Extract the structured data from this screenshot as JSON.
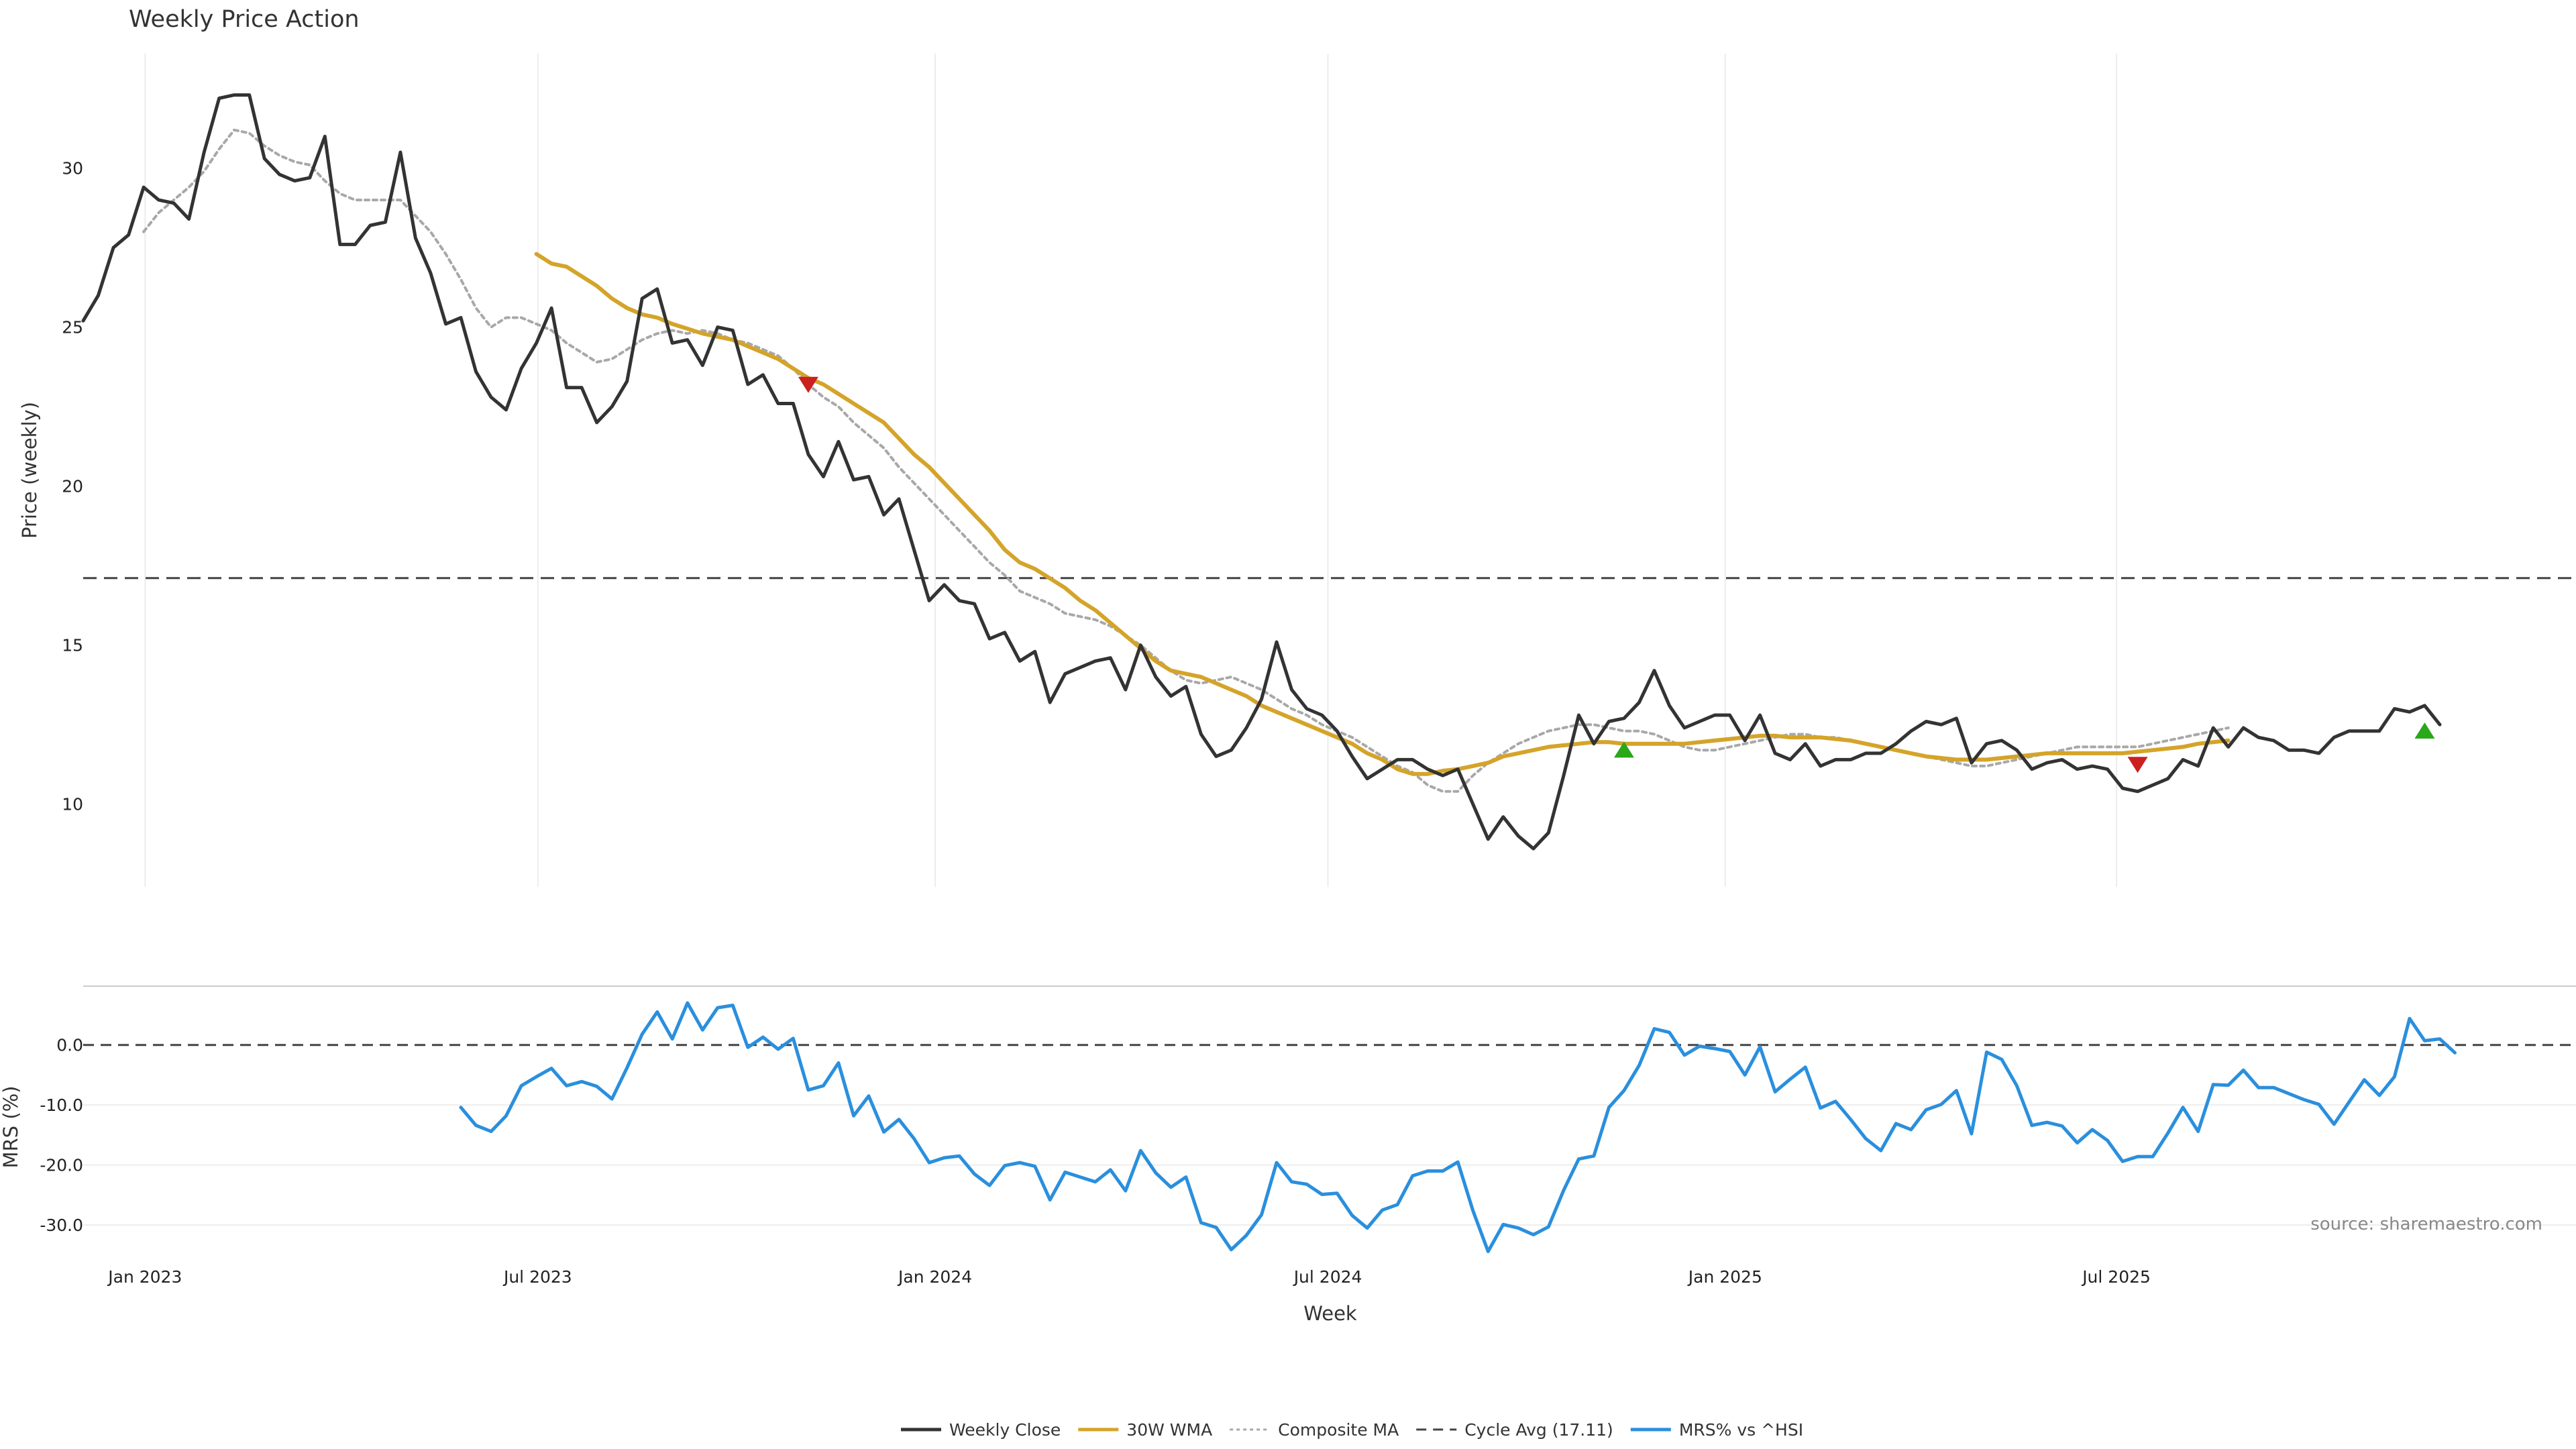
{
  "chart_data": [
    {
      "type": "line",
      "title": "Weekly Price Action",
      "xlabel": "",
      "ylabel": "Price (weekly)",
      "ylim": [
        7.4,
        33.6
      ],
      "yticks": [
        10,
        15,
        20,
        25,
        30
      ],
      "grid": "vertical",
      "x_start": "2022-12-05",
      "x_step": "weekly",
      "series": [
        {
          "name": "Weekly Close",
          "color": "#333333",
          "start_index": 0,
          "values": [
            25.2,
            26.0,
            27.5,
            27.9,
            29.4,
            29.0,
            28.9,
            28.4,
            30.5,
            32.2,
            32.3,
            32.3,
            30.3,
            29.8,
            29.6,
            29.7,
            31.0,
            27.6,
            27.6,
            28.2,
            28.3,
            30.5,
            27.8,
            26.7,
            25.1,
            25.3,
            23.6,
            22.8,
            22.4,
            23.7,
            24.5,
            25.6,
            23.1,
            23.1,
            22.0,
            22.5,
            23.3,
            25.9,
            26.2,
            24.5,
            24.6,
            23.8,
            25.0,
            24.9,
            23.2,
            23.5,
            22.6,
            22.6,
            21.0,
            20.3,
            21.4,
            20.2,
            20.3,
            19.1,
            19.6,
            18.0,
            16.4,
            16.9,
            16.4,
            16.3,
            15.2,
            15.4,
            14.5,
            14.8,
            13.2,
            14.1,
            14.3,
            14.5,
            14.6,
            13.6,
            15.0,
            14.0,
            13.4,
            13.7,
            12.2,
            11.5,
            11.7,
            12.4,
            13.3,
            15.1,
            13.6,
            13.0,
            12.8,
            12.3,
            11.5,
            10.8,
            11.1,
            11.4,
            11.4,
            11.1,
            10.9,
            11.1,
            10.0,
            8.9,
            9.6,
            9.0,
            8.6,
            9.1,
            10.9,
            12.8,
            11.9,
            12.6,
            12.7,
            13.2,
            14.2,
            13.1,
            12.4,
            12.6,
            12.8,
            12.8,
            12.0,
            12.8,
            11.6,
            11.4,
            11.9,
            11.2,
            11.4,
            11.4,
            11.6,
            11.6,
            11.9,
            12.3,
            12.6,
            12.5,
            12.7,
            11.3,
            11.9,
            12.0,
            11.7,
            11.1,
            11.3,
            11.4,
            11.1,
            11.2,
            11.1,
            10.5,
            10.4,
            10.6,
            10.8,
            11.4,
            11.2,
            12.4,
            11.8,
            12.4,
            12.1,
            12.0,
            11.7,
            11.7,
            11.6,
            12.1,
            12.3,
            12.3,
            12.3,
            13.0,
            12.9,
            13.1,
            12.5
          ]
        },
        {
          "name": "30W WMA",
          "color": "#d4a42a",
          "start_index": 30,
          "values": [
            27.3,
            27.0,
            26.9,
            26.6,
            26.3,
            25.9,
            25.6,
            25.4,
            25.3,
            25.1,
            24.95,
            24.8,
            24.7,
            24.6,
            24.4,
            24.2,
            24.0,
            23.7,
            23.4,
            23.2,
            22.9,
            22.6,
            22.3,
            22.0,
            21.5,
            21.0,
            20.6,
            20.1,
            19.6,
            19.1,
            18.6,
            18.0,
            17.6,
            17.4,
            17.1,
            16.8,
            16.4,
            16.1,
            15.7,
            15.3,
            14.9,
            14.5,
            14.2,
            14.1,
            14.0,
            13.8,
            13.6,
            13.4,
            13.1,
            12.9,
            12.7,
            12.5,
            12.3,
            12.1,
            11.9,
            11.6,
            11.4,
            11.1,
            10.95,
            10.95,
            11.05,
            11.1,
            11.2,
            11.3,
            11.5,
            11.6,
            11.7,
            11.8,
            11.85,
            11.9,
            11.95,
            11.95,
            11.9,
            11.9,
            11.9,
            11.9,
            11.9,
            11.95,
            12.0,
            12.05,
            12.1,
            12.15,
            12.15,
            12.1,
            12.1,
            12.1,
            12.05,
            12.0,
            11.9,
            11.8,
            11.7,
            11.6,
            11.5,
            11.45,
            11.4,
            11.4,
            11.4,
            11.45,
            11.5,
            11.55,
            11.6,
            11.6,
            11.6,
            11.6,
            11.6,
            11.6,
            11.65,
            11.7,
            11.75,
            11.8,
            11.9,
            11.95,
            12.0
          ]
        },
        {
          "name": "Composite MA",
          "color": "#a8a8a8",
          "start_index": 4,
          "values": [
            28.0,
            28.6,
            29.0,
            29.4,
            29.9,
            30.6,
            31.2,
            31.1,
            30.7,
            30.4,
            30.2,
            30.1,
            29.6,
            29.2,
            29.0,
            29.0,
            29.0,
            29.0,
            28.5,
            28.0,
            27.3,
            26.5,
            25.6,
            25.0,
            25.3,
            25.3,
            25.1,
            24.9,
            24.5,
            24.2,
            23.9,
            24.0,
            24.3,
            24.6,
            24.8,
            24.9,
            24.8,
            24.9,
            24.8,
            24.6,
            24.5,
            24.3,
            24.1,
            23.7,
            23.2,
            22.8,
            22.5,
            22.0,
            21.6,
            21.2,
            20.6,
            20.1,
            19.6,
            19.1,
            18.6,
            18.1,
            17.6,
            17.2,
            16.7,
            16.5,
            16.3,
            16.0,
            15.9,
            15.8,
            15.6,
            15.3,
            15.0,
            14.6,
            14.2,
            13.9,
            13.8,
            13.9,
            14.0,
            13.8,
            13.6,
            13.3,
            13.0,
            12.8,
            12.5,
            12.3,
            12.1,
            11.8,
            11.5,
            11.2,
            11.0,
            10.6,
            10.4,
            10.4,
            10.9,
            11.3,
            11.6,
            11.9,
            12.1,
            12.3,
            12.4,
            12.5,
            12.5,
            12.4,
            12.3,
            12.3,
            12.2,
            12.0,
            11.8,
            11.7,
            11.7,
            11.8,
            11.9,
            12.0,
            12.1,
            12.2,
            12.2,
            12.1,
            12.1,
            12.0,
            11.9,
            11.8,
            11.7,
            11.6,
            11.5,
            11.4,
            11.3,
            11.2,
            11.2,
            11.3,
            11.4,
            11.5,
            11.6,
            11.7,
            11.8,
            11.8,
            11.8,
            11.8,
            11.8,
            11.9,
            12.0,
            12.1,
            12.2,
            12.3,
            12.4
          ]
        }
      ],
      "reference_lines": [
        {
          "name": "Cycle Avg (17.11)",
          "value": 17.11,
          "style": "dashed",
          "color": "#444444"
        }
      ],
      "markers": [
        {
          "type": "sell",
          "shape": "triangle-down",
          "color": "#cc1f1f",
          "week_index": 48,
          "value": 23.2
        },
        {
          "type": "buy",
          "shape": "triangle-up",
          "color": "#2aa81a",
          "week_index": 102,
          "value": 11.7
        },
        {
          "type": "sell",
          "shape": "triangle-down",
          "color": "#cc1f1f",
          "week_index": 136,
          "value": 11.25
        },
        {
          "type": "buy",
          "shape": "triangle-up",
          "color": "#2aa81a",
          "week_index": 155,
          "value": 12.3
        }
      ]
    },
    {
      "type": "line",
      "title": "",
      "xlabel": "Week",
      "ylabel": "MRS (%)",
      "ylim": [
        -34.9,
        9.8
      ],
      "yticks": [
        0.0,
        -10.0,
        -20.0,
        -30.0
      ],
      "ytick_labels": [
        "0.0",
        "-10.0",
        "-20.0",
        "-30.0"
      ],
      "grid": "horizontal",
      "xtick_labels": [
        "Jan 2023",
        "Jul 2023",
        "Jan 2024",
        "Jul 2024",
        "Jan 2025",
        "Jul 2025"
      ],
      "series": [
        {
          "name": "MRS% vs ^HSI",
          "color": "#2a8fdd",
          "start_index": 25,
          "values": [
            -10.4,
            -13.4,
            -14.4,
            -11.8,
            -6.8,
            -5.3,
            -3.9,
            -6.8,
            -6.1,
            -6.9,
            -9.0,
            -3.8,
            1.8,
            5.5,
            1.0,
            7.0,
            2.5,
            6.2,
            6.6,
            -0.4,
            1.3,
            -0.7,
            1.1,
            -7.5,
            -6.8,
            -3.0,
            -11.8,
            -8.5,
            -14.5,
            -12.4,
            -15.6,
            -19.6,
            -18.8,
            -18.5,
            -21.5,
            -23.4,
            -20.1,
            -19.6,
            -20.2,
            -25.8,
            -21.2,
            -22.0,
            -22.8,
            -20.8,
            -24.3,
            -17.6,
            -21.3,
            -23.7,
            -22.0,
            -29.6,
            -30.4,
            -34.1,
            -31.7,
            -28.3,
            -19.6,
            -22.8,
            -23.2,
            -24.9,
            -24.7,
            -28.4,
            -30.5,
            -27.5,
            -26.6,
            -21.8,
            -21.0,
            -21.0,
            -19.5,
            -27.6,
            -34.4,
            -29.9,
            -30.5,
            -31.6,
            -30.3,
            -24.2,
            -19.0,
            -18.5,
            -10.4,
            -7.6,
            -3.4,
            2.7,
            2.1,
            -1.7,
            -0.2,
            -0.6,
            -1.1,
            -5.0,
            -0.3,
            -7.8,
            -5.7,
            -3.7,
            -10.5,
            -9.4,
            -12.4,
            -15.6,
            -17.6,
            -13.1,
            -14.1,
            -10.8,
            -9.9,
            -7.6,
            -14.8,
            -1.2,
            -2.4,
            -6.8,
            -13.4,
            -12.9,
            -13.5,
            -16.3,
            -14.1,
            -15.9,
            -19.4,
            -18.6,
            -18.6,
            -14.7,
            -10.4,
            -14.4,
            -6.6,
            -6.7,
            -4.2,
            -7.1,
            -7.1,
            -8.1,
            -9.1,
            -9.9,
            -13.2,
            -9.5,
            -5.8,
            -8.4,
            -5.3,
            4.4,
            0.7,
            1.0,
            -1.3
          ]
        }
      ],
      "reference_lines": [
        {
          "value": 0.0,
          "style": "dashed",
          "color": "#444444"
        }
      ]
    }
  ],
  "x_axis": {
    "ticks": [
      {
        "label": "Jan 2023",
        "week_index": 4.1
      },
      {
        "label": "Jul 2023",
        "week_index": 30.1
      },
      {
        "label": "Jan 2024",
        "week_index": 56.4
      },
      {
        "label": "Jul 2024",
        "week_index": 82.4
      },
      {
        "label": "Jan 2025",
        "week_index": 108.7
      },
      {
        "label": "Jul 2025",
        "week_index": 134.6
      }
    ],
    "xlabel": "Week"
  },
  "legend": {
    "placement": "bottom-center",
    "entries": [
      {
        "label": "Weekly Close",
        "color": "#333333",
        "style": "solid"
      },
      {
        "label": "30W WMA",
        "color": "#d4a42a",
        "style": "solid"
      },
      {
        "label": "Composite MA",
        "color": "#a8a8a8",
        "style": "dotted"
      },
      {
        "label": "Cycle Avg (17.11)",
        "color": "#444444",
        "style": "dashed"
      },
      {
        "label": "MRS% vs ^HSI",
        "color": "#2a8fdd",
        "style": "solid"
      }
    ]
  },
  "source_note": "source: sharemaestro.com"
}
